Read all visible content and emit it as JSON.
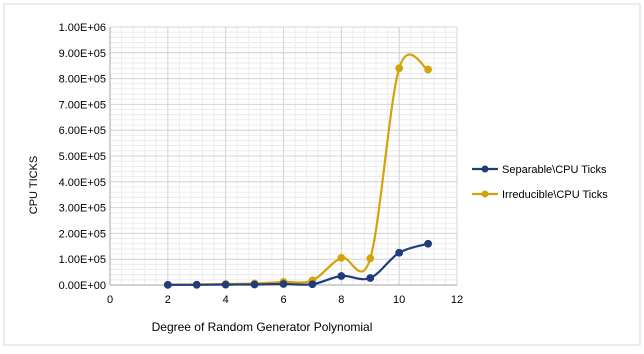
{
  "chart_data": {
    "type": "scatter",
    "title": "",
    "xlabel": "Degree  of  Random Generator Polynomial",
    "ylabel": "CPU TICKS",
    "xlim": [
      0,
      12
    ],
    "ylim": [
      0,
      1000000
    ],
    "x_ticks": [
      "0",
      "2",
      "4",
      "6",
      "8",
      "10",
      "12"
    ],
    "x_tick_values": [
      0,
      2,
      4,
      6,
      8,
      10,
      12
    ],
    "y_ticks": [
      "0.00E+00",
      "1.00E+05",
      "2.00E+05",
      "3.00E+05",
      "4.00E+05",
      "5.00E+05",
      "6.00E+05",
      "7.00E+05",
      "8.00E+05",
      "9.00E+05",
      "1.00E+06"
    ],
    "y_tick_values": [
      0,
      100000,
      200000,
      300000,
      400000,
      500000,
      600000,
      700000,
      800000,
      900000,
      1000000
    ],
    "grid": true,
    "smooth": true,
    "legend_position": "right",
    "series": [
      {
        "name": "Separable\\CPU Ticks",
        "color": "#1f3d7a",
        "x": [
          2,
          3,
          4,
          5,
          6,
          7,
          8,
          9,
          10,
          11
        ],
        "y": [
          500,
          800,
          1500,
          2000,
          4000,
          3000,
          35000,
          27000,
          125000,
          160000
        ]
      },
      {
        "name": "Irreducible\\CPU Ticks",
        "color": "#d4a30a",
        "x": [
          2,
          3,
          4,
          5,
          6,
          7,
          8,
          9,
          10,
          11
        ],
        "y": [
          1000,
          1500,
          4000,
          6000,
          12000,
          18000,
          105000,
          103000,
          840000,
          835000
        ]
      }
    ]
  }
}
